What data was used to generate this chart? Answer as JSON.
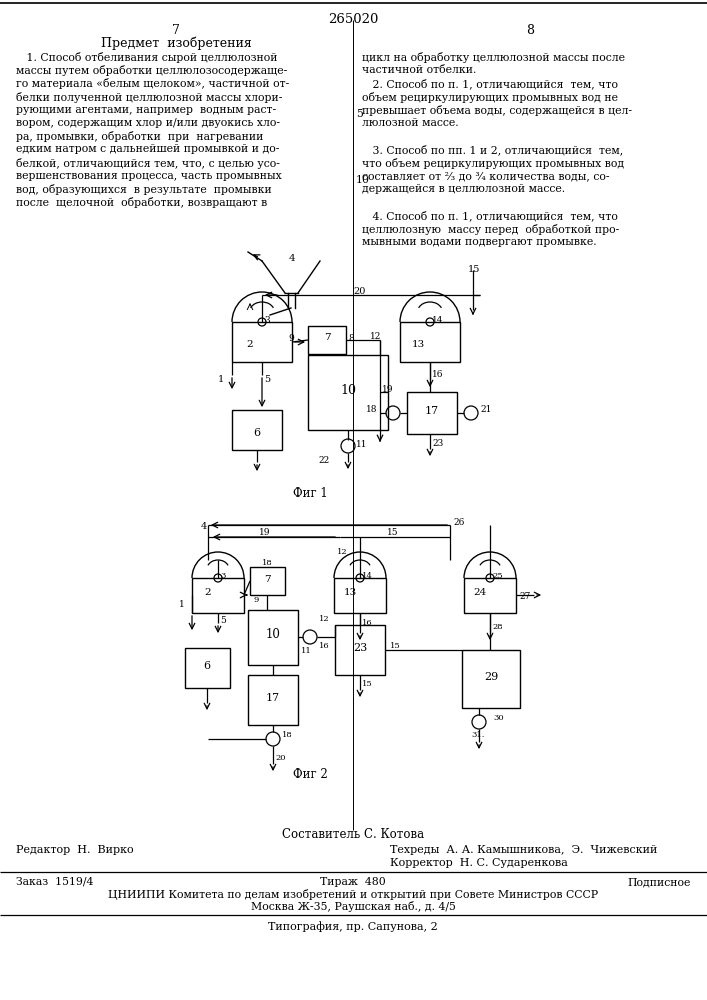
{
  "page_number": "265020",
  "left_col_number": "7",
  "right_col_number": "8",
  "header_title": "Предмет  изобретения",
  "left_text_lines": [
    "   1. Способ отбеливания сырой целлюлозной",
    "массы путем обработки целлюлозосодержаще-",
    "го материала «белым щелоком», частичной от-",
    "белки полученной целлюлозной массы хлори-",
    "рующими агентами, например  водным раст-",
    "вором, содержащим хлор и/или двуокись хло-",
    "ра, промывки, обработки  при  нагревании",
    "едким натром с дальнейшей промывкой и до-",
    "белкой, отличающийся тем, что, с целью усо-",
    "вершенствования процесса, часть промывных",
    "вод, образующихся  в результате  промывки",
    "после  щелочной  обработки, возвращают в"
  ],
  "right_text_lines": [
    "цикл на обработку целлюлозной массы после",
    "частичной отбелки.",
    "   2. Способ по п. 1, отличающийся  тем, что",
    "объем рециркулирующих промывных вод не",
    "превышает объема воды, содержащейся в цел-",
    "люлозной массе.",
    "",
    "   3. Способ по пп. 1 и 2, отличающийся  тем,",
    "что объем рециркулирующих промывных вод",
    "составляет от ²⁄₃ до ³⁄₄ количества воды, со-",
    "держащейся в целлюлозной массе.",
    "",
    "   4. Способ по п. 1, отличающийся  тем, что",
    "целлюлозную  массу перед  обработкой про-",
    "мывными водами подвергают промывке."
  ],
  "margin_numbers": [
    {
      "text": "5",
      "line_after": 4
    },
    {
      "text": "10",
      "line_after": 9
    }
  ],
  "fig1_caption": "Фиг 1",
  "fig2_caption": "Фиг 2",
  "footer_composer": "Составитель С. Котова",
  "footer_editor": "Редактор  Н.  Вирко",
  "footer_techred": "Техреды  А. А. Камышникова,  Э.  Чижевский",
  "footer_corrector": "Корректор  Н. С. Сударенкова",
  "footer_order": "Заказ  1519/4",
  "footer_tirazh": "Тираж  480",
  "footer_podpisnoe": "Подписное",
  "footer_org": "ЦНИИПИ Комитета по делам изобретений и открытий при Совете Министров СССР",
  "footer_address": "Москва Ж-35, Раушская наб., д. 4/5",
  "footer_typography": "Типография, пр. Сапунова, 2",
  "bg_color": "#ffffff"
}
